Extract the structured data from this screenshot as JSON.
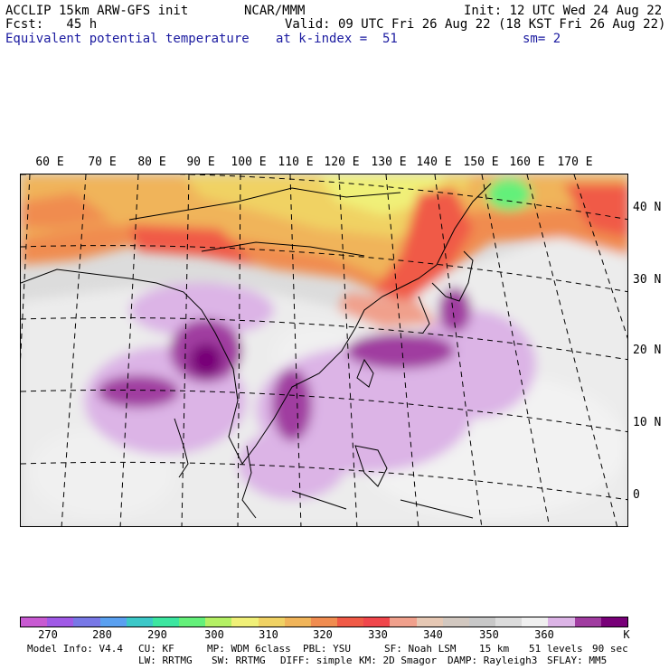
{
  "header": {
    "model_title": "ACCLIP 15km ARW-GFS init",
    "center": "NCAR/MMM",
    "init": "Init: 12 UTC Wed 24 Aug 22",
    "fcst": "Fcst:   45 h",
    "valid": "Valid: 09 UTC Fri 26 Aug 22 (18 KST Fri 26 Aug 22)",
    "field": "Equivalent potential temperature",
    "level": "at k-index =  51",
    "smooth": "sm= 2"
  },
  "map": {
    "lon_labels": [
      "60 E",
      "70 E",
      "80 E",
      "90 E",
      "100 E",
      "110 E",
      "120 E",
      "130 E",
      "140 E",
      "150 E",
      "160 E",
      "170 E"
    ],
    "lat_labels": [
      "40 N",
      "30 N",
      "20 N",
      "10 N",
      "0"
    ]
  },
  "colorbar": {
    "colors": [
      "#c85ad2",
      "#a05ae6",
      "#7878e6",
      "#5aa0f0",
      "#3cc8c8",
      "#3ce6a0",
      "#64f07a",
      "#b4f064",
      "#f0f078",
      "#f0d264",
      "#f0b45a",
      "#f08c50",
      "#f05a46",
      "#f0464b",
      "#f0a08c",
      "#e6c8b4",
      "#d2c8c0",
      "#c8c8c8",
      "#dcdcdc",
      "#f0f0f0",
      "#dcb4e6",
      "#a03ca0",
      "#780078"
    ],
    "labels": [
      "270",
      "280",
      "290",
      "300",
      "310",
      "320",
      "330",
      "340",
      "350",
      "360",
      "K"
    ]
  },
  "footer": {
    "line1": [
      "Model Info: V4.4",
      "CU: KF",
      "MP: WDM 6class",
      "PBL: YSU",
      "SF: Noah LSM",
      "15 km",
      "51 levels",
      "90 sec"
    ],
    "line2": [
      "LW: RRTMG",
      "SW: RRTMG",
      "DIFF: simple",
      "KM: 2D Smagor",
      "DAMP: Rayleigh3",
      "SFLAY: MM5"
    ]
  }
}
